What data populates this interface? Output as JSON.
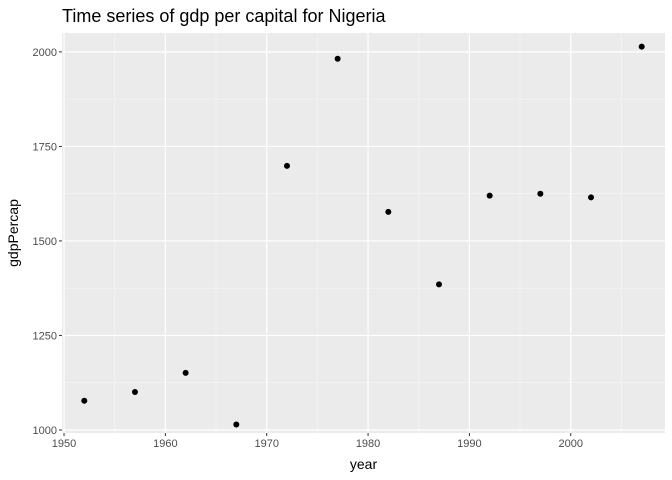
{
  "chart_data": {
    "type": "scatter",
    "title": "Time series of gdp per capital for Nigeria",
    "xlabel": "year",
    "ylabel": "gdpPercap",
    "xlim": [
      1949.8,
      2009.3
    ],
    "ylim": [
      992,
      2050
    ],
    "x_ticks": [
      1950,
      1960,
      1970,
      1980,
      1990,
      2000
    ],
    "x_minor_ticks": [
      1955,
      1965,
      1975,
      1985,
      1995,
      2005
    ],
    "y_ticks": [
      1000,
      1250,
      1500,
      1750,
      2000
    ],
    "y_tick_labels": [
      "1000",
      "1250",
      "1500",
      "1750",
      "2000"
    ],
    "y_minor_ticks": [
      1125,
      1375,
      1625,
      1875
    ],
    "grid": true,
    "legend": "none",
    "colors": {
      "panel_background": "#ebebeb",
      "grid_major": "#ffffff",
      "grid_minor": "#f5f5f5",
      "point": "#000000",
      "tick_text": "#4d4d4d",
      "tick_mark": "#333333"
    },
    "series": [
      {
        "x": [
          1952,
          1957,
          1962,
          1967,
          1972,
          1977,
          1982,
          1987,
          1992,
          1997,
          2002,
          2007
        ],
        "y": [
          1077.3,
          1100.6,
          1150.9,
          1014.5,
          1698.4,
          1982.0,
          1576.9,
          1385.0,
          1619.8,
          1624.9,
          1615.3,
          2013.98
        ]
      }
    ]
  }
}
